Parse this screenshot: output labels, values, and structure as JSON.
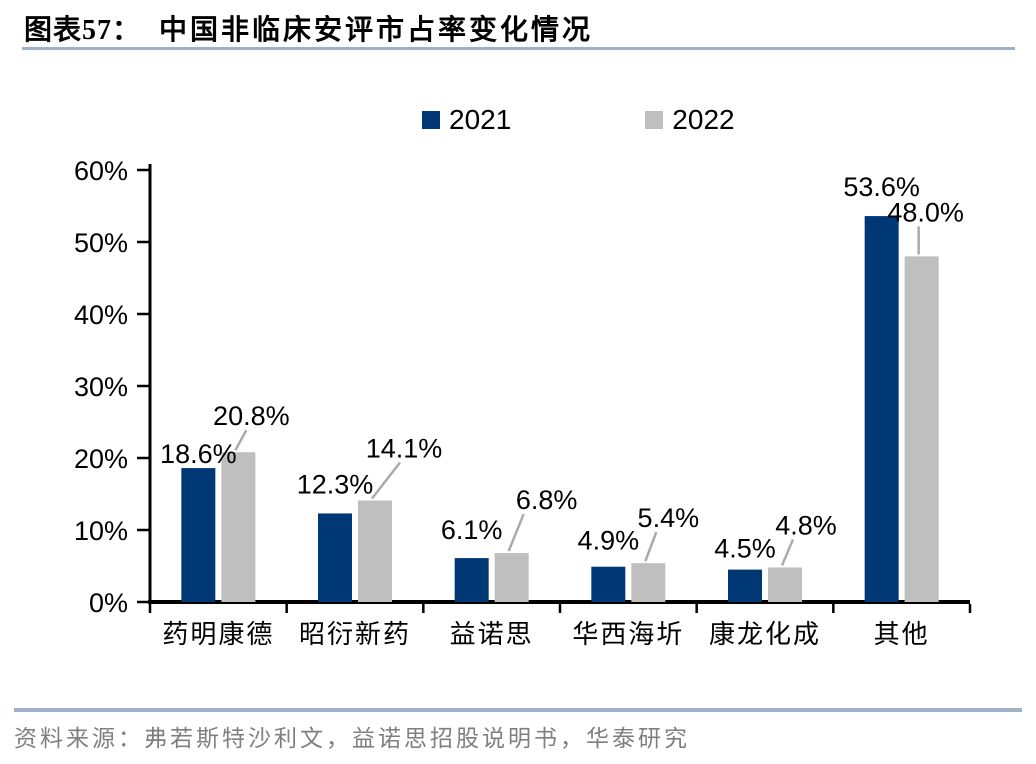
{
  "figure": {
    "label": "图表57：",
    "title": "中国非临床安评市占率变化情况"
  },
  "source": {
    "text": "资料来源：弗若斯特沙利文，益诺思招股说明书，华泰研究"
  },
  "colors": {
    "series_2021": "#003876",
    "series_2022": "#BFBFBF",
    "divider_rule": "#9FB0C7",
    "leader_line": "#ABABAB",
    "source_text": "#7F7F7F",
    "axis": "#000000"
  },
  "chart_data": {
    "type": "bar",
    "title": "中国非临床安评市占率变化情况",
    "categories": [
      "药明康德",
      "昭衍新药",
      "益诺思",
      "华西海圻",
      "康龙化成",
      "其他"
    ],
    "series": [
      {
        "name": "2021",
        "color": "#003876",
        "values": [
          18.6,
          12.3,
          6.1,
          4.9,
          4.5,
          53.6
        ]
      },
      {
        "name": "2022",
        "color": "#BFBFBF",
        "values": [
          20.8,
          14.1,
          6.8,
          5.4,
          4.8,
          48.0
        ]
      }
    ],
    "data_labels": [
      {
        "name": "2021",
        "values": [
          "18.6%",
          "12.3%",
          "6.1%",
          "4.9%",
          "4.5%",
          "53.6%"
        ]
      },
      {
        "name": "2022",
        "values": [
          "20.8%",
          "14.1%",
          "6.8%",
          "5.4%",
          "4.8%",
          "48.0%"
        ]
      }
    ],
    "xlabel": "",
    "ylabel": "",
    "y_ticks": [
      "0%",
      "10%",
      "20%",
      "30%",
      "40%",
      "50%",
      "60%"
    ],
    "ylim": [
      0,
      60
    ],
    "grid": false,
    "legend_position": "top"
  }
}
